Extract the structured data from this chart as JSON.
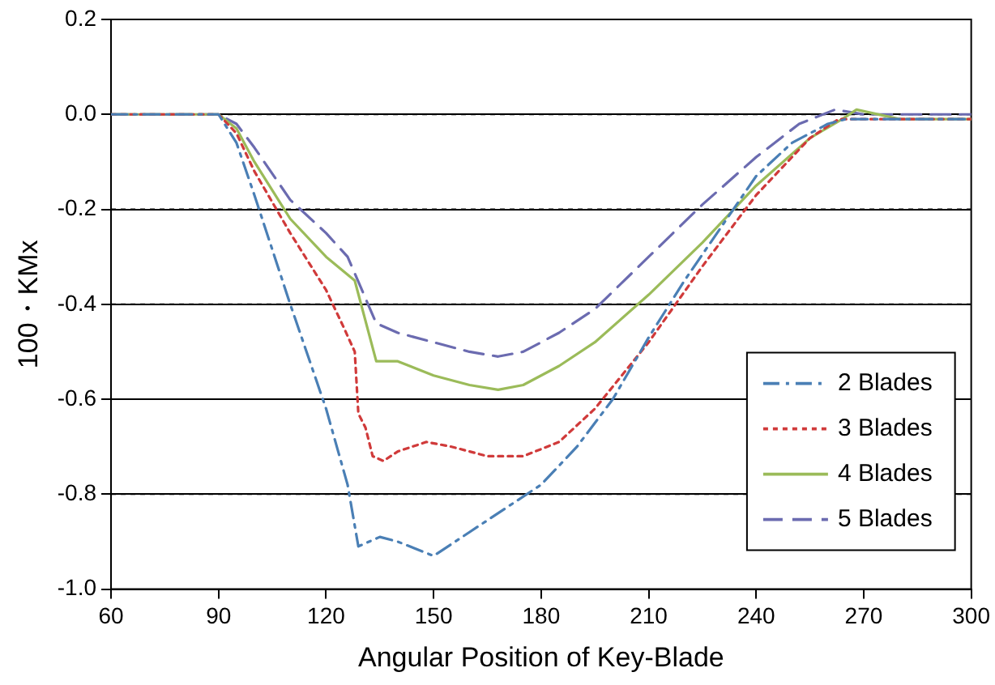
{
  "chart_data": {
    "type": "line",
    "xlabel": "Angular Position of Key-Blade",
    "ylabel": "100・KMx",
    "xlim": [
      60,
      300
    ],
    "xticks": [
      60,
      90,
      120,
      150,
      180,
      210,
      240,
      270,
      300
    ],
    "ylim": [
      -1.0,
      0.2
    ],
    "yticks": [
      {
        "value": 0.2,
        "label": "0.2"
      },
      {
        "value": 0,
        "label": "0.0"
      },
      {
        "value": -0.2,
        "label": "-0.2"
      },
      {
        "value": -0.4,
        "label": "-0.4"
      },
      {
        "value": -0.6,
        "label": "-0.6"
      },
      {
        "value": -0.8,
        "label": "-0.8"
      },
      {
        "value": -1.0,
        "label": "-1.0"
      }
    ],
    "grid": "y",
    "legend": "bottom right",
    "marker": "none",
    "series": [
      {
        "name": "2 Blades",
        "color": "#4a7fb5",
        "line_style": "dashdot",
        "x": [
          60,
          90,
          95,
          100,
          110,
          120,
          126,
          129,
          135,
          140,
          150,
          160,
          170,
          180,
          190,
          200,
          210,
          220,
          230,
          240,
          250,
          260,
          265,
          270,
          300
        ],
        "values": [
          0,
          0,
          -0.06,
          -0.17,
          -0.4,
          -0.62,
          -0.78,
          -0.91,
          -0.89,
          -0.9,
          -0.93,
          -0.88,
          -0.83,
          -0.78,
          -0.7,
          -0.6,
          -0.47,
          -0.35,
          -0.24,
          -0.13,
          -0.06,
          -0.02,
          -0.01,
          -0.01,
          -0.01
        ]
      },
      {
        "name": "3 Blades",
        "color": "#d03a3a",
        "line_style": "dotted",
        "x": [
          60,
          90,
          95,
          100,
          110,
          120,
          125,
          128,
          129,
          131,
          133,
          136,
          140,
          148,
          155,
          165,
          175,
          185,
          195,
          210,
          225,
          240,
          255,
          263,
          270,
          300
        ],
        "values": [
          0,
          0,
          -0.04,
          -0.12,
          -0.25,
          -0.37,
          -0.45,
          -0.5,
          -0.63,
          -0.66,
          -0.72,
          -0.73,
          -0.71,
          -0.69,
          -0.7,
          -0.72,
          -0.72,
          -0.69,
          -0.62,
          -0.48,
          -0.32,
          -0.17,
          -0.05,
          -0.01,
          -0.01,
          -0.01
        ]
      },
      {
        "name": "4 Blades",
        "color": "#9bbb59",
        "line_style": "solid",
        "x": [
          60,
          90,
          95,
          100,
          110,
          120,
          128,
          134,
          140,
          150,
          160,
          168,
          175,
          185,
          195,
          210,
          225,
          240,
          255,
          264,
          268,
          280,
          300
        ],
        "values": [
          0,
          0,
          -0.03,
          -0.1,
          -0.22,
          -0.3,
          -0.35,
          -0.52,
          -0.52,
          -0.55,
          -0.57,
          -0.58,
          -0.57,
          -0.53,
          -0.48,
          -0.38,
          -0.27,
          -0.15,
          -0.05,
          -0.01,
          0.01,
          -0.01,
          -0.01
        ]
      },
      {
        "name": "5 Blades",
        "color": "#6b6bb0",
        "line_style": "dashed",
        "x": [
          60,
          90,
          95,
          100,
          110,
          120,
          126,
          134,
          140,
          150,
          160,
          168,
          175,
          185,
          195,
          210,
          225,
          240,
          252,
          262,
          270,
          300
        ],
        "values": [
          0,
          0,
          -0.02,
          -0.07,
          -0.18,
          -0.25,
          -0.3,
          -0.44,
          -0.46,
          -0.48,
          -0.5,
          -0.51,
          -0.5,
          -0.46,
          -0.41,
          -0.3,
          -0.19,
          -0.09,
          -0.02,
          0.01,
          0,
          0
        ]
      }
    ]
  }
}
